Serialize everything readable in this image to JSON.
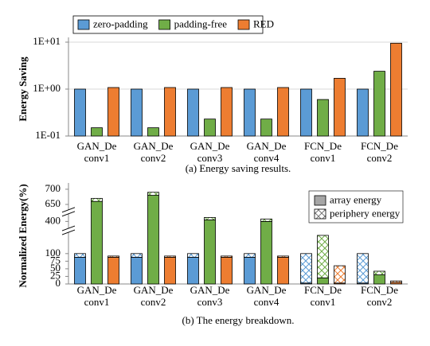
{
  "chart_data": [
    {
      "type": "bar",
      "log_y": true,
      "ylabel": "Energy Saving",
      "caption": "(a) Energy saving results.",
      "categories": [
        [
          "GAN_De",
          "conv1"
        ],
        [
          "GAN_De",
          "conv2"
        ],
        [
          "GAN_De",
          "conv3"
        ],
        [
          "GAN_De",
          "conv4"
        ],
        [
          "FCN_De",
          "conv1"
        ],
        [
          "FCN_De",
          "conv2"
        ]
      ],
      "series": [
        {
          "name": "zero-padding",
          "color": "#5b9bd5",
          "values": [
            1,
            1,
            1,
            1,
            1,
            1
          ]
        },
        {
          "name": "padding-free",
          "color": "#70ad47",
          "values": [
            0.15,
            0.15,
            0.23,
            0.23,
            0.6,
            2.4
          ]
        },
        {
          "name": "RED",
          "color": "#ed7d31",
          "values": [
            1.08,
            1.08,
            1.08,
            1.08,
            1.7,
            9.5
          ]
        }
      ],
      "ylim": [
        0.1,
        10
      ],
      "yticks": [
        {
          "value": 0.1,
          "label": "1E-01"
        },
        {
          "value": 1,
          "label": "1E+00"
        },
        {
          "value": 10,
          "label": "1E+01"
        }
      ],
      "grid": true,
      "legend": "top"
    },
    {
      "type": "stacked-bar",
      "ylabel": "Normalized Energy(%)",
      "caption": "(b) The energy breakdown.",
      "categories": [
        [
          "GAN_De",
          "conv1"
        ],
        [
          "GAN_De",
          "conv2"
        ],
        [
          "GAN_De",
          "conv3"
        ],
        [
          "GAN_De",
          "conv4"
        ],
        [
          "FCN_De",
          "conv1"
        ],
        [
          "FCN_De",
          "conv2"
        ]
      ],
      "stack_names": [
        "array energy",
        "periphery energy"
      ],
      "series": [
        {
          "color": "#5b9bd5",
          "array": [
            88,
            88,
            88,
            88,
            3,
            3
          ],
          "periphery": [
            12,
            12,
            12,
            12,
            97,
            97
          ]
        },
        {
          "color": "#70ad47",
          "array": [
            660,
            680,
            405,
            400,
            20,
            30
          ],
          "periphery": [
            10,
            10,
            8,
            8,
            140,
            12
          ]
        },
        {
          "color": "#ed7d31",
          "array": [
            88,
            88,
            88,
            88,
            3,
            5
          ],
          "periphery": [
            4,
            4,
            4,
            4,
            57,
            5
          ]
        }
      ],
      "ylim_segments": [
        [
          0,
          170
        ],
        [
          385,
          425
        ],
        [
          640,
          705
        ]
      ],
      "yticks": [
        0,
        25,
        50,
        75,
        100,
        400,
        650,
        700
      ],
      "legend": "upper right"
    }
  ]
}
